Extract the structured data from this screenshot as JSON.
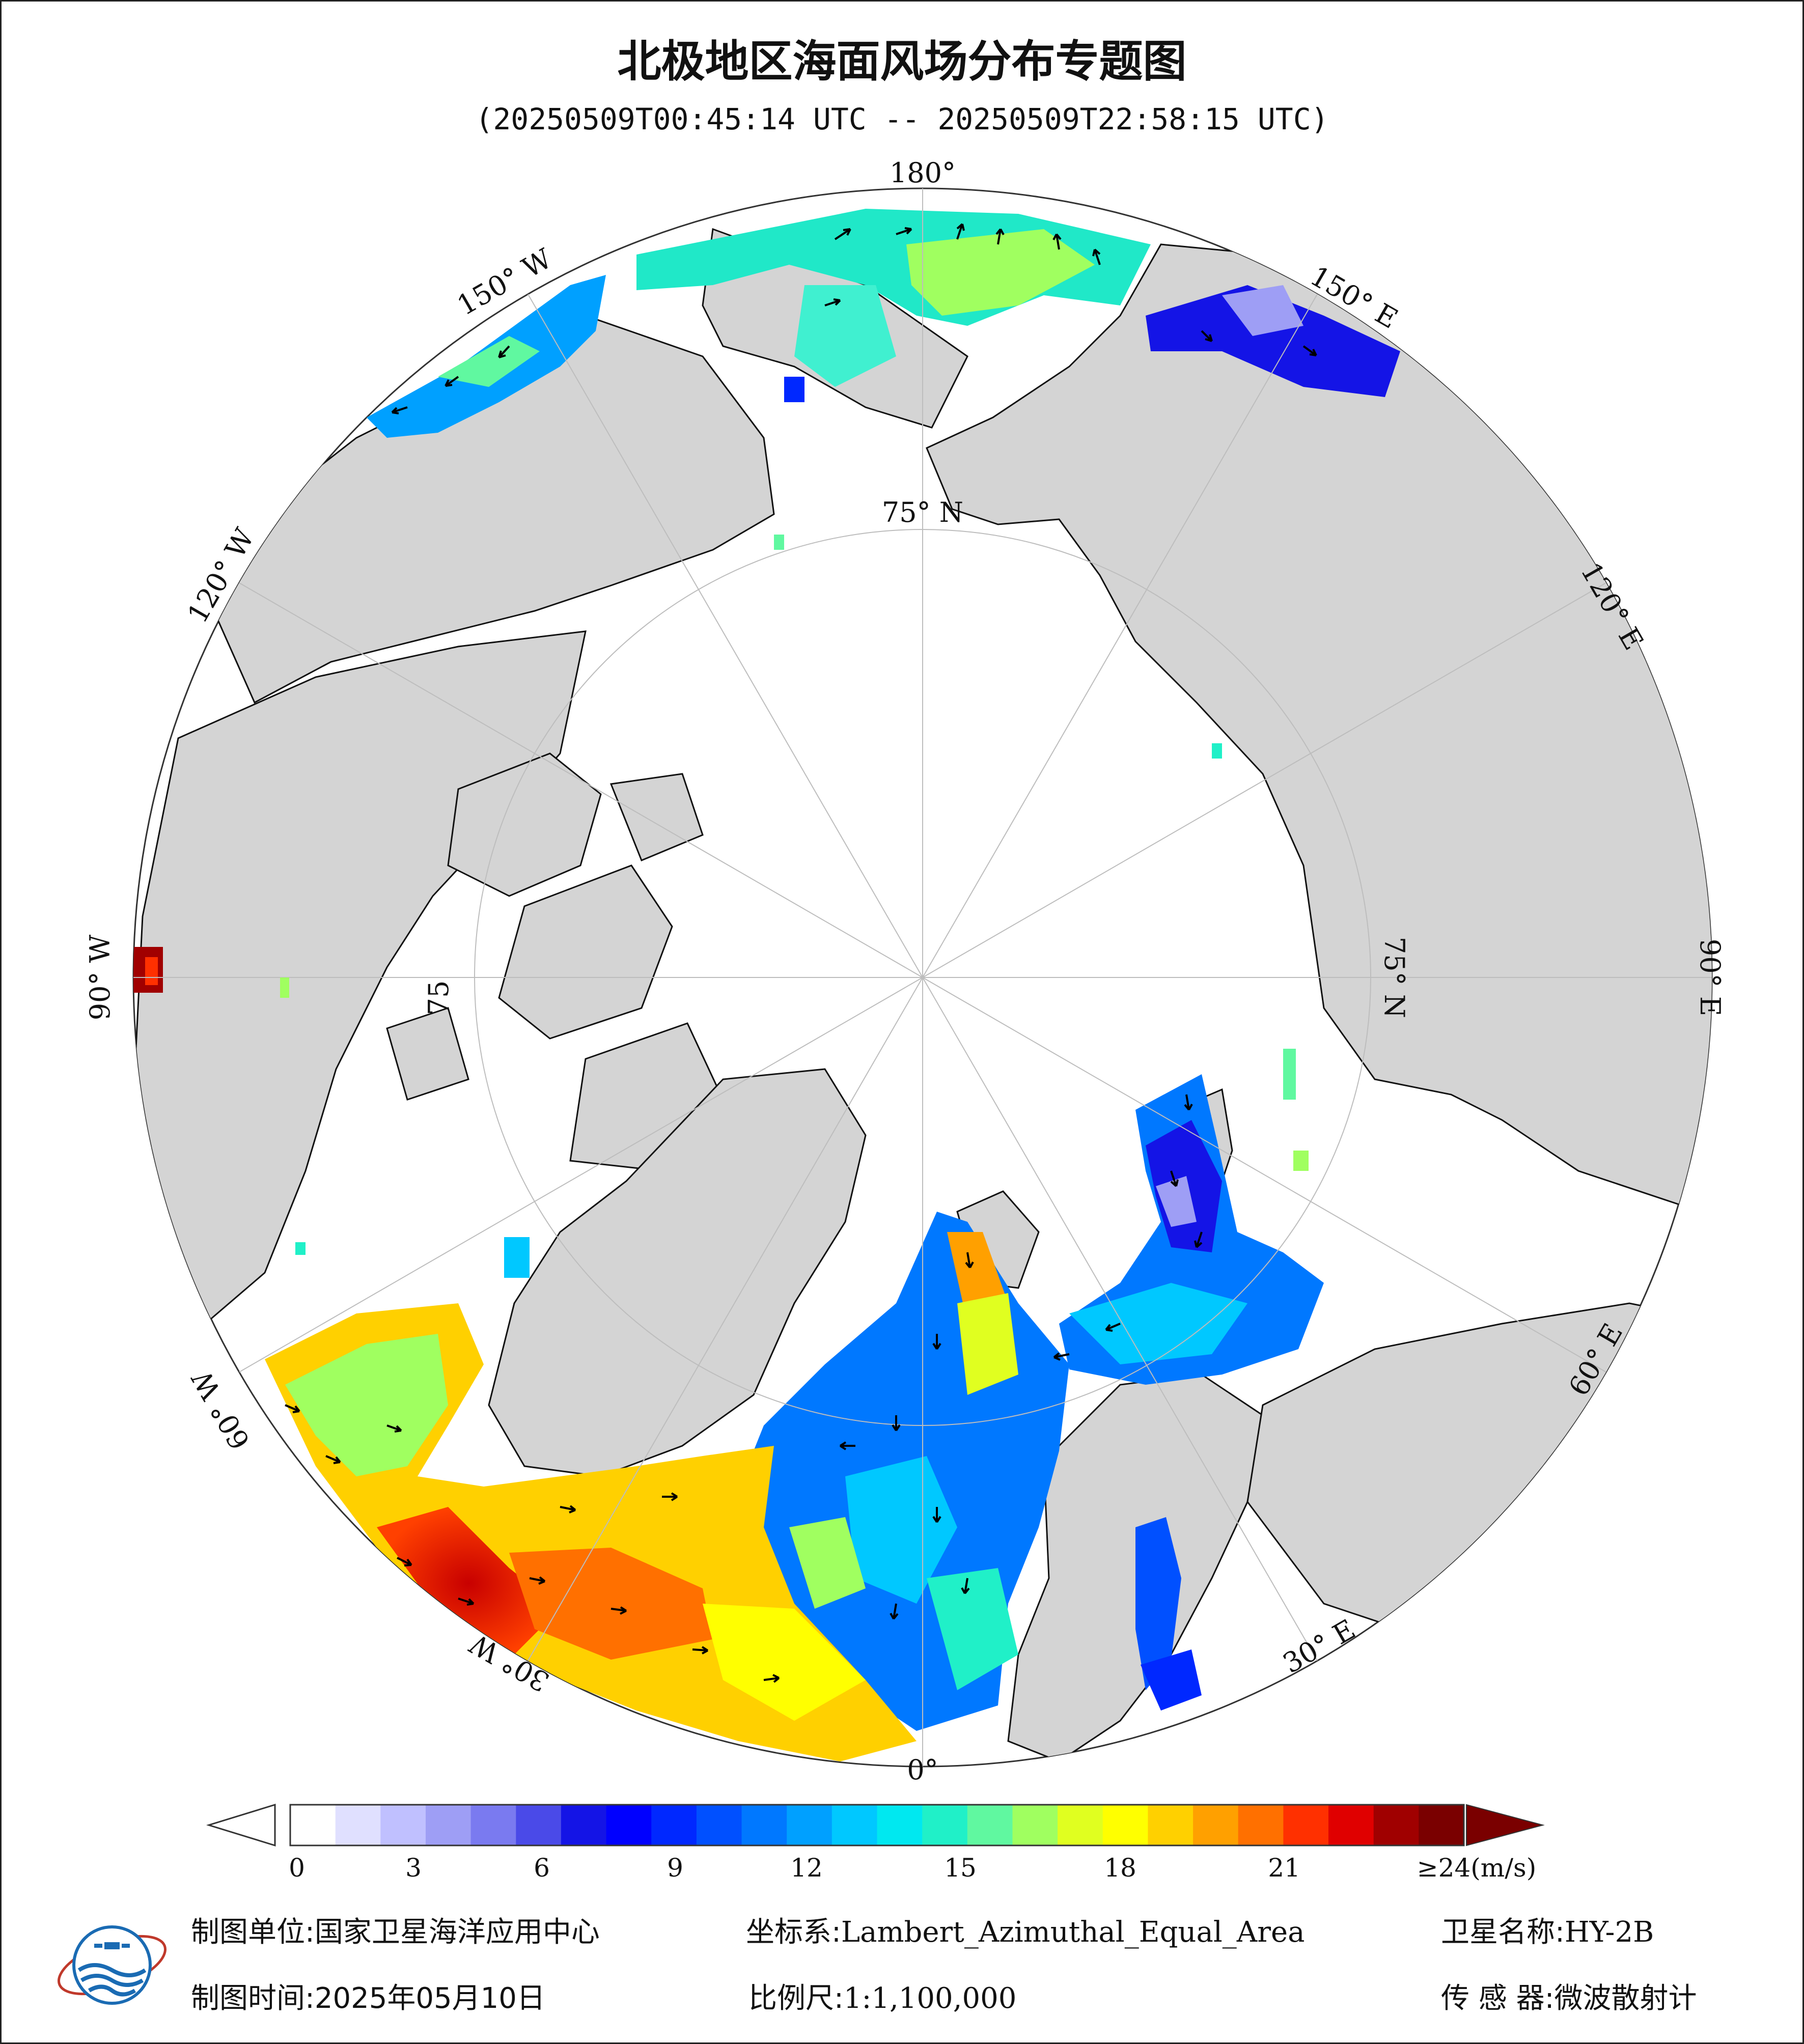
{
  "title": "北极地区海面风场分布专题图",
  "subtitle": "(20250509T00:45:14 UTC -- 20250509T22:58:15 UTC)",
  "map": {
    "projection": "Lambert_Azimuthal_Equal_Area",
    "center": "North Pole",
    "longitude_labels": [
      "180°",
      "150° E",
      "120° E",
      "90° E",
      "60° E",
      "30° E",
      "0°",
      "30° W",
      "60° W",
      "90° W",
      "120° W",
      "150° W"
    ],
    "latitude_labels": [
      "75° N",
      "75° N",
      "75"
    ],
    "colors": {
      "land": "#d4d4d4",
      "ice_sea": "#ffffff",
      "coast": "#111111",
      "grid": "#bdbdbd",
      "arrow": "#000000"
    }
  },
  "legend": {
    "title": "",
    "unit": "(m/s)",
    "ticks": [
      "0",
      "3",
      "6",
      "9",
      "12",
      "15",
      "18",
      "21",
      "≥24(m/s)"
    ],
    "range": [
      0,
      24
    ],
    "under_color": "#ffffff",
    "over_color": "#7a0000",
    "colors": [
      "#ffffff",
      "#e0e0ff",
      "#c0c0ff",
      "#9e9ef5",
      "#7a7af0",
      "#4a4ae8",
      "#1414e6",
      "#0000ff",
      "#0028ff",
      "#0050ff",
      "#0078ff",
      "#00a0ff",
      "#00c8ff",
      "#00e8f0",
      "#20f0c8",
      "#60f8a0",
      "#a0ff60",
      "#e0ff20",
      "#ffff00",
      "#ffd000",
      "#ffa000",
      "#ff7000",
      "#ff3000",
      "#e00000",
      "#a00000",
      "#7a0000"
    ]
  },
  "footer": {
    "unit_label": "制图单位:",
    "unit_value": "国家卫星海洋应用中心",
    "time_label": "制图时间:",
    "time_value": "2025年05月10日",
    "crs_label": "坐标系:",
    "crs_value": "Lambert_Azimuthal_Equal_Area",
    "scale_label": "比例尺:",
    "scale_value": "1:1,100,000",
    "sat_label": "卫星名称:",
    "sat_value": "HY-2B",
    "sensor_label": "传 感 器:",
    "sensor_value": "微波散射计"
  },
  "logo": {
    "description_text": "国家卫星海洋应用中心"
  }
}
